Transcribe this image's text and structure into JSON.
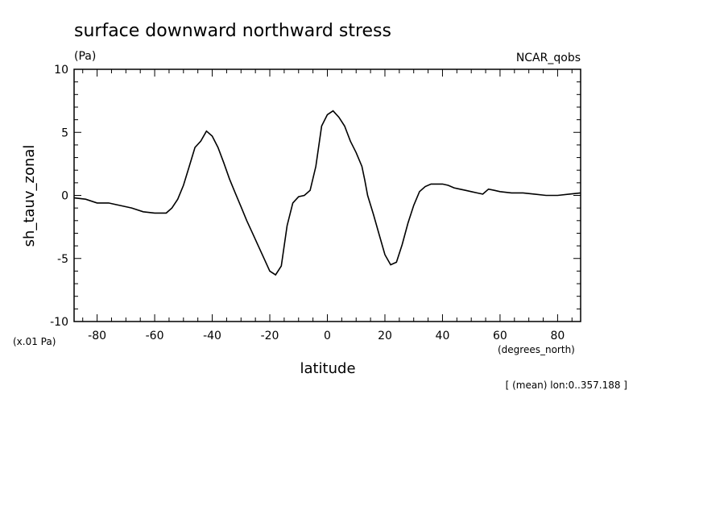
{
  "chart_data": {
    "type": "line",
    "title": "surface downward northward stress",
    "subtitle": "(Pa)",
    "source_label": "NCAR_qobs",
    "ylabel": "sh_tauv_zonal",
    "yscale_note": "(x.01 Pa)",
    "xlabel": "latitude",
    "xunit": "(degrees_north)",
    "footnote": "[ (mean) lon:0..357.188 ]",
    "xlim": [
      -88,
      88
    ],
    "ylim": [
      -10,
      10
    ],
    "x_major_ticks": [
      -80,
      -60,
      -40,
      -20,
      0,
      20,
      40,
      60,
      80
    ],
    "x_tick_labels": [
      "-80",
      "-60",
      "-40",
      "-20",
      "0",
      "20",
      "40",
      "60",
      "80"
    ],
    "y_major_ticks": [
      -10,
      -5,
      0,
      5,
      10
    ],
    "y_tick_labels": [
      "-10",
      "-5",
      "0",
      "5",
      "10"
    ],
    "grid": false,
    "series": [
      {
        "x": [
          -88,
          -84,
          -80,
          -76,
          -72,
          -68,
          -64,
          -60,
          -56,
          -54,
          -52,
          -50,
          -48,
          -46,
          -44,
          -42,
          -40,
          -38,
          -36,
          -34,
          -32,
          -30,
          -28,
          -26,
          -24,
          -22,
          -20,
          -18,
          -16,
          -14,
          -12,
          -10,
          -8,
          -6,
          -4,
          -2,
          0,
          2,
          4,
          6,
          8,
          10,
          12,
          13,
          14,
          16,
          18,
          20,
          22,
          24,
          26,
          28,
          30,
          32,
          34,
          36,
          38,
          40,
          42,
          44,
          46,
          48,
          50,
          52,
          54,
          56,
          58,
          60,
          64,
          68,
          72,
          76,
          80,
          84,
          88
        ],
        "values": [
          -0.2,
          -0.3,
          -0.6,
          -0.6,
          -0.8,
          -1.0,
          -1.3,
          -1.4,
          -1.4,
          -1.0,
          -0.3,
          0.8,
          2.3,
          3.8,
          4.3,
          5.1,
          4.7,
          3.8,
          2.6,
          1.3,
          0.2,
          -0.9,
          -2.0,
          -3.0,
          -4.0,
          -5.0,
          -6.0,
          -6.3,
          -5.6,
          -2.4,
          -0.6,
          -0.1,
          0.0,
          0.4,
          2.3,
          5.5,
          6.4,
          6.7,
          6.2,
          5.5,
          4.3,
          3.4,
          2.3,
          1.2,
          0.0,
          -1.5,
          -3.1,
          -4.7,
          -5.5,
          -5.3,
          -3.9,
          -2.2,
          -0.8,
          0.3,
          0.7,
          0.9,
          0.9,
          0.9,
          0.8,
          0.6,
          0.5,
          0.4,
          0.3,
          0.2,
          0.1,
          0.5,
          0.4,
          0.3,
          0.2,
          0.2,
          0.1,
          0.0,
          0.0,
          0.1,
          0.2
        ]
      }
    ]
  }
}
